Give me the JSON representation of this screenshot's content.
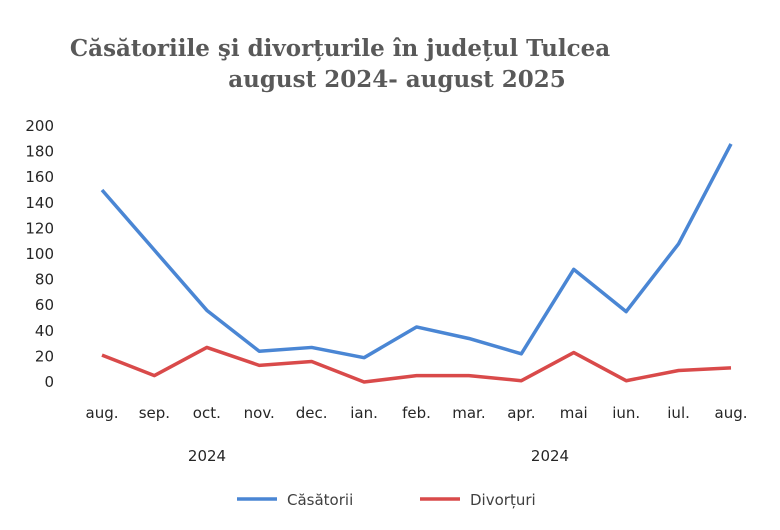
{
  "chart_data": {
    "type": "line",
    "title": [
      "Căsătoriile şi divorțurile în județul Tulcea",
      "august 2024- august 2025"
    ],
    "categories": [
      "aug.",
      "sep.",
      "oct.",
      "nov.",
      "dec.",
      "ian.",
      "feb.",
      "mar.",
      "apr.",
      "mai",
      "iun.",
      "iul.",
      "aug."
    ],
    "year_labels": [
      "2024",
      "2024"
    ],
    "ylim": [
      0,
      200
    ],
    "yticks": [
      0,
      20,
      40,
      60,
      80,
      100,
      120,
      140,
      160,
      180,
      200
    ],
    "grid": false,
    "legend": "bottom",
    "series": [
      {
        "name": "Căsătorii",
        "color": "#4a86d4",
        "values": [
          150,
          103,
          56,
          24,
          27,
          19,
          43,
          34,
          22,
          88,
          55,
          108,
          186
        ]
      },
      {
        "name": "Divorțuri",
        "color": "#d94a4a",
        "values": [
          21,
          5,
          27,
          13,
          16,
          0,
          5,
          5,
          1,
          23,
          1,
          9,
          11
        ]
      }
    ]
  }
}
